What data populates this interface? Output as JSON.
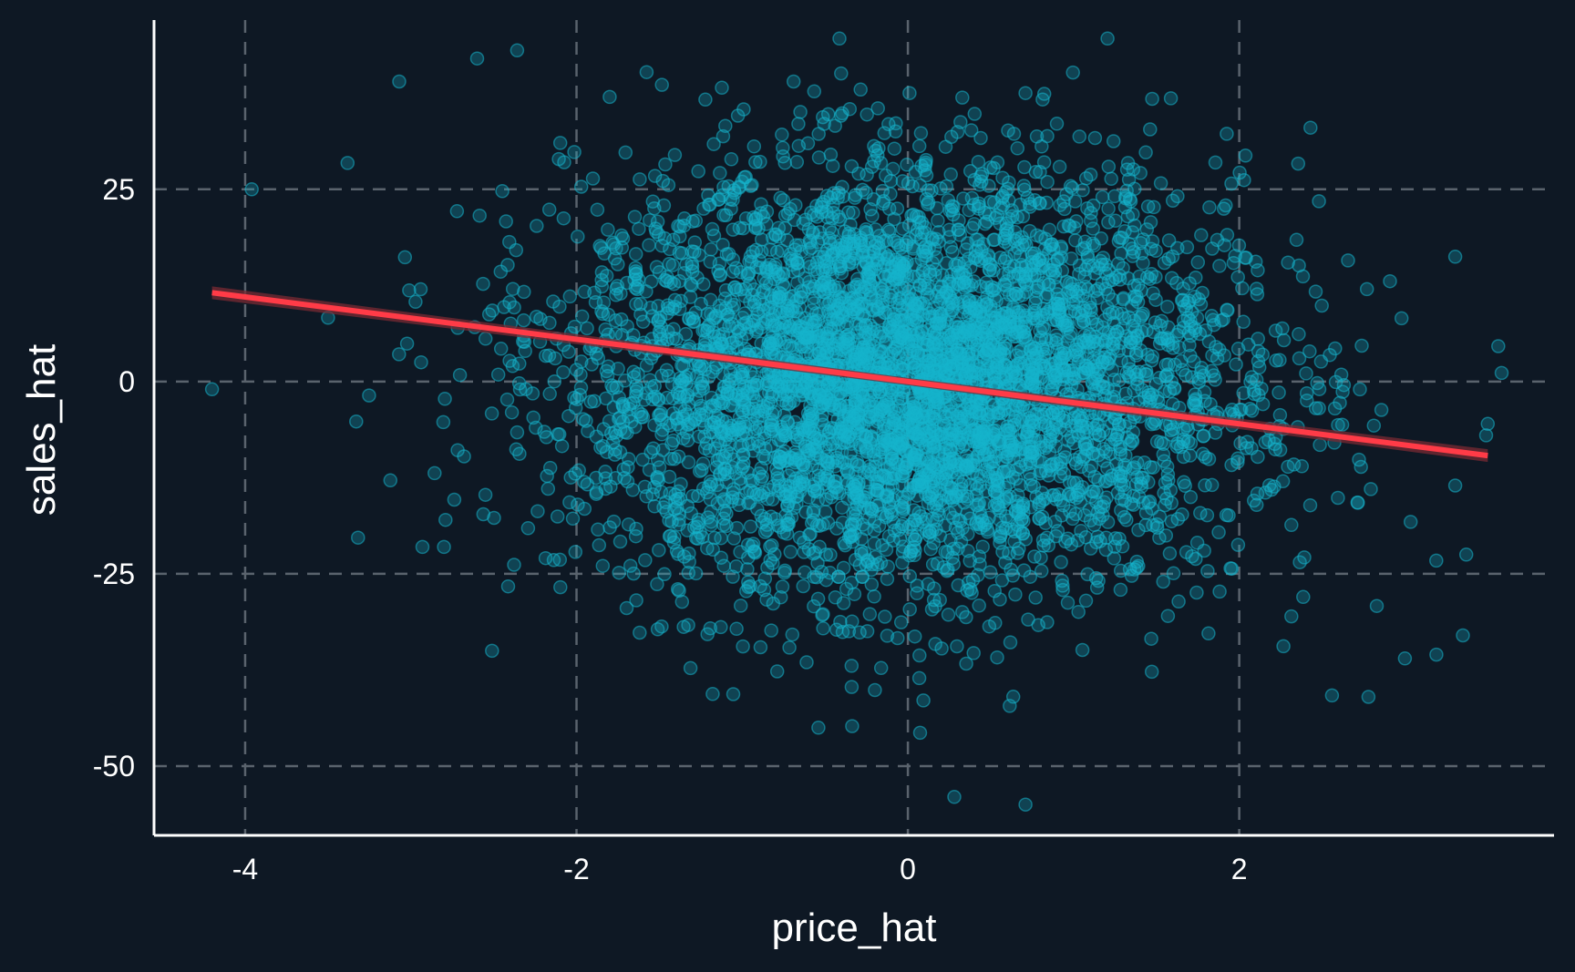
{
  "chart_data": {
    "type": "scatter",
    "title": "",
    "xlabel": "price_hat",
    "ylabel": "sales_hat",
    "xlim": [
      -4.55,
      3.9
    ],
    "ylim": [
      -59,
      47
    ],
    "x_ticks": [
      -4,
      -2,
      0,
      2
    ],
    "x_tick_labels": [
      "-4",
      "-2",
      "0",
      "2"
    ],
    "y_ticks": [
      -50,
      -25,
      0,
      25
    ],
    "y_tick_labels": [
      "-50",
      "-25",
      "0",
      "25"
    ],
    "grid": true,
    "legend": "none",
    "colors": {
      "background": "#0e1824",
      "points": "#16b5cc",
      "fit_line": "#ff3b47",
      "grid": "#5a636d",
      "axis": "#ffffff",
      "text": "#ffffff"
    },
    "points": {
      "count": 5000,
      "x_mean": 0.0,
      "x_sd": 1.0,
      "y_mean": 0.0,
      "y_sd": 13.5,
      "point_alpha": 0.28
    },
    "fit_line": {
      "intercept": 0.0,
      "slope": -2.75,
      "x_range": [
        -4.2,
        3.5
      ]
    },
    "outliers": [
      {
        "x": -2.6,
        "y": 42
      },
      {
        "x": -3.07,
        "y": 39
      },
      {
        "x": -0.69,
        "y": 39
      },
      {
        "x": -4.2,
        "y": -1
      },
      {
        "x": -3.96,
        "y": 25
      },
      {
        "x": 3.5,
        "y": -5.5
      },
      {
        "x": 3.49,
        "y": -7
      },
      {
        "x": 3.35,
        "y": -33
      },
      {
        "x": 3.0,
        "y": -36
      },
      {
        "x": 2.78,
        "y": -41
      },
      {
        "x": 0.28,
        "y": -54
      },
      {
        "x": 0.71,
        "y": -55
      },
      {
        "x": -0.54,
        "y": -45
      },
      {
        "x": -2.51,
        "y": -35
      },
      {
        "x": -2.8,
        "y": -21.5
      },
      {
        "x": -2.93,
        "y": -21.5
      },
      {
        "x": 2.43,
        "y": 33
      },
      {
        "x": -1.8,
        "y": 37
      },
      {
        "x": 0.01,
        "y": 37.5
      },
      {
        "x": 0.71,
        "y": 37.5
      },
      {
        "x": 3.37,
        "y": -22.5
      },
      {
        "x": -3.5,
        "y": 8.3
      },
      {
        "x": -3.33,
        "y": -5.2
      },
      {
        "x": 3.19,
        "y": -35.5
      }
    ]
  }
}
